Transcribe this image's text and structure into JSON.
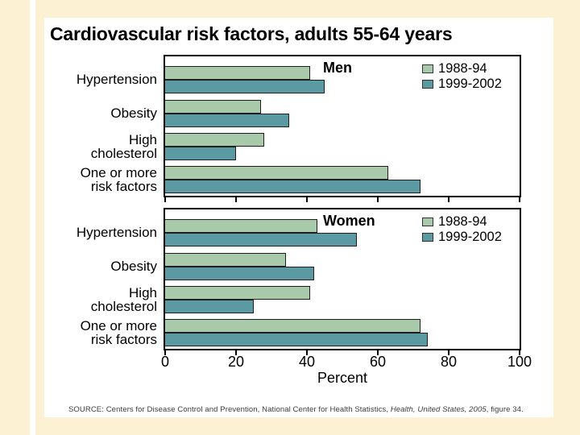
{
  "title": "Cardiovascular risk factors, adults 55-64 years",
  "source": {
    "prefix": "SOURCE: Centers for Disease Control and Prevention, National Center for Health Statistics, ",
    "italic": "Health, United States, 2005",
    "suffix": ", figure 34."
  },
  "colors": {
    "series_1988_94": "#a9c9ab",
    "series_1999_2002": "#5b99a3",
    "bar_border": "#1f1f1f",
    "slide_background": "#ffffff",
    "page_background": "#fcf1d3"
  },
  "axis": {
    "xlabel": "Percent",
    "xticks": [
      0,
      20,
      40,
      60,
      80,
      100
    ],
    "xlim": [
      0,
      100
    ]
  },
  "chart_data": [
    {
      "type": "bar",
      "orientation": "horizontal",
      "panel_title": "Men",
      "categories": [
        "Hypertension",
        "Obesity",
        "High cholesterol",
        "One or more risk factors"
      ],
      "category_lines": [
        [
          "Hypertension"
        ],
        [
          "Obesity"
        ],
        [
          "High",
          "cholesterol"
        ],
        [
          "One or more",
          "risk factors"
        ]
      ],
      "series": [
        {
          "name": "1988-94",
          "color": "#a9c9ab",
          "values": [
            41,
            27,
            28,
            63
          ]
        },
        {
          "name": "1999-2002",
          "color": "#5b99a3",
          "values": [
            45,
            35,
            20,
            72
          ]
        }
      ],
      "xlim": [
        0,
        100
      ],
      "xticks": [
        0,
        20,
        40,
        60,
        80,
        100
      ],
      "show_x_tick_labels": false,
      "xlabel": "",
      "legend_position": "top-right",
      "grid": false
    },
    {
      "type": "bar",
      "orientation": "horizontal",
      "panel_title": "Women",
      "categories": [
        "Hypertension",
        "Obesity",
        "High cholesterol",
        "One or more risk factors"
      ],
      "category_lines": [
        [
          "Hypertension"
        ],
        [
          "Obesity"
        ],
        [
          "High",
          "cholesterol"
        ],
        [
          "One or more",
          "risk factors"
        ]
      ],
      "series": [
        {
          "name": "1988-94",
          "color": "#a9c9ab",
          "values": [
            43,
            34,
            41,
            72
          ]
        },
        {
          "name": "1999-2002",
          "color": "#5b99a3",
          "values": [
            54,
            42,
            25,
            74
          ]
        }
      ],
      "xlim": [
        0,
        100
      ],
      "xticks": [
        0,
        20,
        40,
        60,
        80,
        100
      ],
      "show_x_tick_labels": true,
      "xlabel": "Percent",
      "legend_position": "top-right",
      "grid": false
    }
  ]
}
